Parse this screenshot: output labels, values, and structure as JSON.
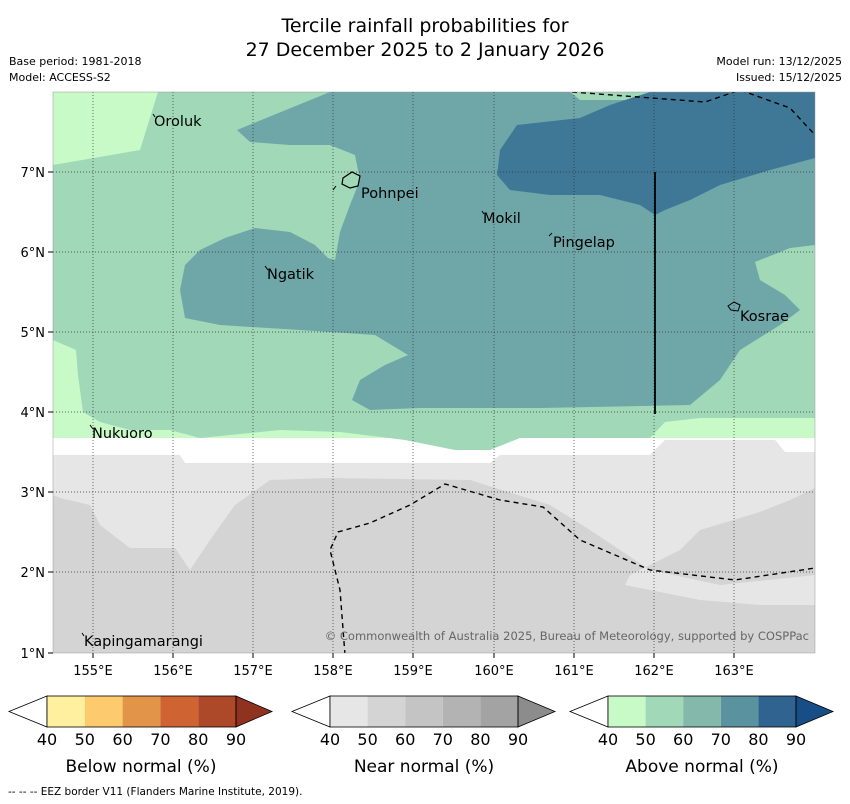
{
  "title": {
    "line1": "Tercile rainfall probabilities for",
    "line2": "27 December 2025 to 2 January 2026"
  },
  "meta": {
    "base_period": "Base period: 1981-2018",
    "model": "Model: ACCESS-S2",
    "model_run": "Model run: 13/12/2025",
    "issued": "Issued: 15/12/2025"
  },
  "map": {
    "lon_range": [
      154.5,
      164.0
    ],
    "lat_range": [
      1.0,
      8.0
    ],
    "lon_ticks": [
      "155°E",
      "156°E",
      "157°E",
      "158°E",
      "159°E",
      "160°E",
      "161°E",
      "162°E",
      "163°E"
    ],
    "lat_ticks": [
      "1°N",
      "2°N",
      "3°N",
      "4°N",
      "5°N",
      "6°N",
      "7°N"
    ],
    "places": [
      {
        "name": "Oroluk",
        "lon": 155.75,
        "lat": 7.7
      },
      {
        "name": "Pohnpei",
        "lon": 158.3,
        "lat": 6.9
      },
      {
        "name": "Mokil",
        "lon": 159.85,
        "lat": 6.45
      },
      {
        "name": "Pingelap",
        "lon": 160.7,
        "lat": 6.15
      },
      {
        "name": "Ngatik",
        "lon": 157.0,
        "lat": 5.8
      },
      {
        "name": "Kosrae",
        "lon": 162.95,
        "lat": 5.3
      },
      {
        "name": "Nukuoro",
        "lon": 154.95,
        "lat": 3.85
      },
      {
        "name": "Kapingamarangi",
        "lon": 154.9,
        "lat": 1.25
      }
    ],
    "copyright": "© Commonwealth of Australia 2025, Bureau of Meteorology, supported by COSPPac"
  },
  "legend": {
    "tick_labels": [
      "40",
      "50",
      "60",
      "70",
      "80",
      "90"
    ],
    "groups": [
      {
        "title": "Below normal (%)",
        "colors": [
          "#fff0a0",
          "#fdcb6e",
          "#e29548",
          "#cf6432",
          "#ad4828",
          "#8f3320"
        ]
      },
      {
        "title": "Near normal (%)",
        "colors": [
          "#e6e6e6",
          "#d4d4d4",
          "#c4c4c4",
          "#b3b3b3",
          "#a3a3a3",
          "#8c8c8c"
        ]
      },
      {
        "title": "Above normal (%)",
        "colors": [
          "#c8fac8",
          "#a0d8b8",
          "#84b8ab",
          "#5a92a0",
          "#316391",
          "#184e86"
        ]
      }
    ]
  },
  "footer": "--  --  -- EEZ border V11 (Flanders Marine Institute, 2019)."
}
